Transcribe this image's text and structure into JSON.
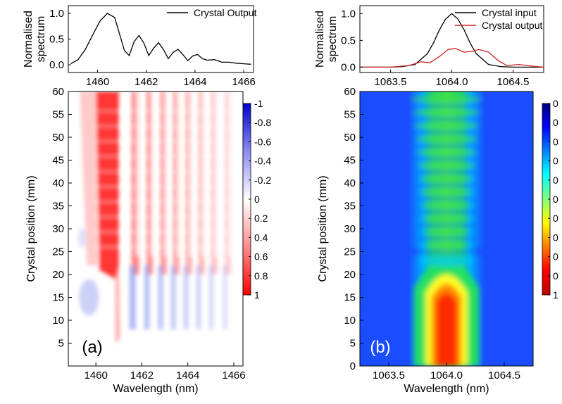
{
  "chart_data": [
    {
      "panel": "a-top",
      "type": "line",
      "ylabel": "Normalised spectrum",
      "xlim": [
        1458.8,
        1466.4
      ],
      "ylim": [
        -0.15,
        1.15
      ],
      "x_ticks": [
        "1460",
        "1462",
        "1464",
        "1466"
      ],
      "y_ticks": [
        "0.0",
        "0.5",
        "1.0"
      ],
      "legend": {
        "position": "top-right"
      },
      "series": [
        {
          "name": "Crystal Output",
          "color": "#000000",
          "x": [
            1458.9,
            1459.2,
            1459.5,
            1459.8,
            1460.1,
            1460.4,
            1460.7,
            1460.9,
            1461.1,
            1461.3,
            1461.5,
            1461.7,
            1461.9,
            1462.1,
            1462.3,
            1462.5,
            1462.7,
            1462.9,
            1463.1,
            1463.3,
            1463.5,
            1463.7,
            1463.9,
            1464.1,
            1464.3,
            1464.5,
            1464.8,
            1465.1,
            1465.4,
            1465.7,
            1466.0,
            1466.3
          ],
          "y": [
            0.02,
            0.1,
            0.3,
            0.58,
            0.85,
            1.0,
            0.92,
            0.6,
            0.28,
            0.18,
            0.45,
            0.57,
            0.42,
            0.18,
            0.32,
            0.43,
            0.3,
            0.12,
            0.24,
            0.3,
            0.2,
            0.08,
            0.17,
            0.2,
            0.12,
            0.09,
            0.1,
            0.05,
            0.05,
            0.03,
            0.02,
            0.01
          ]
        }
      ]
    },
    {
      "panel": "a",
      "type": "heatmap",
      "xlabel": "Wavelength (nm)",
      "ylabel": "Crystal position (mm)",
      "xlim": [
        1458.8,
        1466.4
      ],
      "ylim": [
        0,
        60
      ],
      "x_ticks": [
        "1460",
        "1462",
        "1464",
        "1466"
      ],
      "y_ticks": [
        "5",
        "10",
        "15",
        "20",
        "25",
        "30",
        "35",
        "40",
        "45",
        "50",
        "55",
        "60"
      ],
      "colorbar_ticks": [
        "-1",
        "-0.8",
        "-0.6",
        "-0.4",
        "-0.2",
        "0",
        "0.2",
        "0.4",
        "0.6",
        "0.8",
        "1"
      ],
      "colormap": {
        "negative": "#0000cc",
        "zero": "#ffffff",
        "positive": "#ff0000"
      },
      "panel_label": "(a)"
    },
    {
      "panel": "b-top",
      "type": "line",
      "ylabel": "Normalised spectrum",
      "xlim": [
        1063.25,
        1064.75
      ],
      "ylim": [
        -0.1,
        1.15
      ],
      "x_ticks": [
        "1063.5",
        "1064.0",
        "1064.5"
      ],
      "y_ticks": [
        "0.0",
        "0.5",
        "1.0"
      ],
      "legend": {
        "position": "top-right"
      },
      "series": [
        {
          "name": "Crystal input",
          "color": "#000000",
          "x": [
            1063.25,
            1063.5,
            1063.6,
            1063.7,
            1063.8,
            1063.85,
            1063.9,
            1063.95,
            1064.0,
            1064.05,
            1064.1,
            1064.15,
            1064.2,
            1064.3,
            1064.4,
            1064.5,
            1064.75
          ],
          "y": [
            0.0,
            0.0,
            0.01,
            0.05,
            0.25,
            0.45,
            0.7,
            0.9,
            1.0,
            0.9,
            0.7,
            0.45,
            0.25,
            0.05,
            0.01,
            0.0,
            0.0
          ]
        },
        {
          "name": "Crystal output",
          "color": "#cc2222",
          "x": [
            1063.25,
            1063.5,
            1063.65,
            1063.75,
            1063.82,
            1063.9,
            1063.97,
            1064.03,
            1064.1,
            1064.18,
            1064.22,
            1064.3,
            1064.38,
            1064.45,
            1064.55,
            1064.65,
            1064.75
          ],
          "y": [
            0.0,
            0.0,
            0.03,
            0.1,
            0.08,
            0.2,
            0.33,
            0.35,
            0.28,
            0.3,
            0.33,
            0.28,
            0.12,
            0.03,
            0.05,
            0.02,
            0.0
          ]
        }
      ]
    },
    {
      "panel": "b",
      "type": "heatmap",
      "xlabel": "Wavelength (nm)",
      "ylabel": "Crystal position (mm)",
      "xlim": [
        1063.25,
        1064.75
      ],
      "ylim": [
        0,
        60
      ],
      "x_ticks": [
        "1063.5",
        "1064.0",
        "1064.5"
      ],
      "y_ticks": [
        "0",
        "5",
        "10",
        "15",
        "20",
        "25",
        "30",
        "35",
        "40",
        "45",
        "50",
        "55",
        "60"
      ],
      "colorbar_ticks": [
        "0",
        "0",
        "0",
        "0",
        "0",
        "0",
        "0",
        "0",
        "0",
        "0",
        "1"
      ],
      "colormap": {
        "low": "#000080",
        "high": "#ff0000",
        "scheme": "jet"
      },
      "panel_label": "(b)"
    }
  ]
}
